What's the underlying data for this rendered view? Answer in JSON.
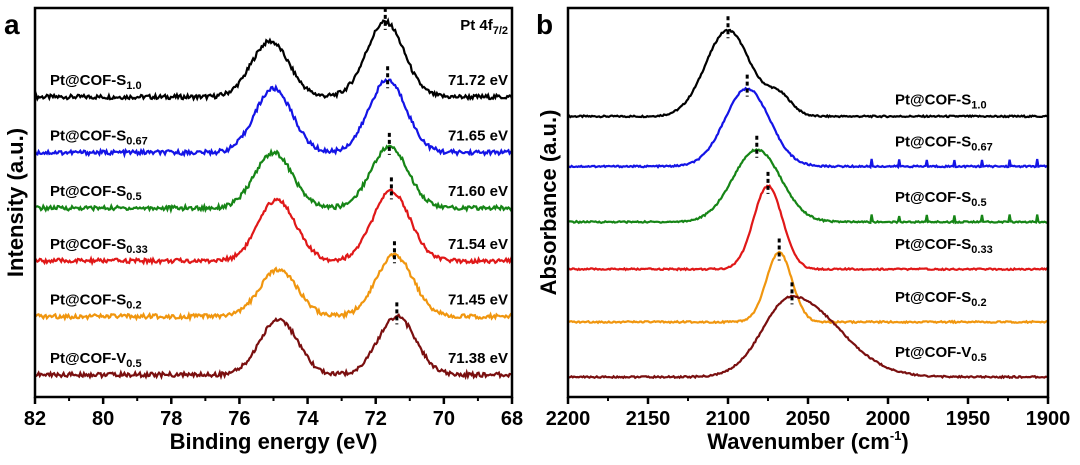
{
  "chart_data": [
    {
      "type": "line",
      "panel": "a",
      "xlabel": "Binding energy (eV)",
      "ylabel": "Intensity (a.u.)",
      "xlim": [
        82,
        68
      ],
      "ylim": [
        0,
        7
      ],
      "xticks": [
        "82",
        "80",
        "78",
        "76",
        "74",
        "72",
        "70",
        "68"
      ],
      "annotation": "Pt 4f",
      "annotation_sub": "7/2",
      "series": [
        {
          "name": "Pt@COF-S",
          "sub": "1.0",
          "color": "#000000",
          "offset": 5.4,
          "peak_label": "71.72 eV",
          "peak": 71.72,
          "peaks": [
            [
              75.1,
              0.55,
              1.0
            ],
            [
              71.72,
              0.55,
              1.35
            ]
          ]
        },
        {
          "name": "Pt@COF-S",
          "sub": "0.67",
          "color": "#1414e6",
          "offset": 4.4,
          "peak_label": "71.65 eV",
          "peak": 71.65,
          "peaks": [
            [
              75.0,
              0.55,
              1.15
            ],
            [
              71.65,
              0.55,
              1.3
            ]
          ]
        },
        {
          "name": "Pt@COF-S",
          "sub": "0.5",
          "color": "#168516",
          "offset": 3.4,
          "peak_label": "71.60 eV",
          "peak": 71.6,
          "peaks": [
            [
              75.0,
              0.55,
              1.0
            ],
            [
              71.6,
              0.55,
              1.1
            ]
          ]
        },
        {
          "name": "Pt@COF-S",
          "sub": "0.33",
          "color": "#e01818",
          "offset": 2.45,
          "peak_label": "71.54 eV",
          "peak": 71.54,
          "peaks": [
            [
              74.9,
              0.55,
              1.1
            ],
            [
              71.54,
              0.55,
              1.25
            ]
          ]
        },
        {
          "name": "Pt@COF-S",
          "sub": "0.2",
          "color": "#f0960f",
          "offset": 1.45,
          "peak_label": "71.45 eV",
          "peak": 71.45,
          "peaks": [
            [
              74.85,
              0.55,
              0.85
            ],
            [
              71.45,
              0.55,
              1.1
            ]
          ]
        },
        {
          "name": "Pt@COF-V",
          "sub": "0.5",
          "color": "#7a0f0f",
          "offset": 0.4,
          "peak_label": "71.38 eV",
          "peak": 71.38,
          "peaks": [
            [
              74.85,
              0.55,
              1.0
            ],
            [
              71.38,
              0.55,
              1.05
            ]
          ]
        }
      ]
    },
    {
      "type": "line",
      "panel": "b",
      "xlabel": "Wavenumber (cm",
      "xlabel_sup": "-1",
      "xlabel_end": ")",
      "ylabel": "Absorbance (a.u.)",
      "xlim": [
        2200,
        1900
      ],
      "ylim": [
        0,
        7
      ],
      "xticks": [
        "2200",
        "2150",
        "2100",
        "2050",
        "2000",
        "1950",
        "1900"
      ],
      "series": [
        {
          "name": "Pt@COF-S",
          "sub": "1.0",
          "color": "#000000",
          "offset": 5.05,
          "peak": 2100,
          "peaks": [
            [
              2100,
              14,
              1.55
            ],
            [
              2068,
              8,
              0.35
            ]
          ]
        },
        {
          "name": "Pt@COF-S",
          "sub": "0.67",
          "color": "#1414e6",
          "offset": 4.15,
          "peak": 2088,
          "peaks": [
            [
              2088,
              14,
              1.4
            ]
          ]
        },
        {
          "name": "Pt@COF-S",
          "sub": "0.5",
          "color": "#168516",
          "offset": 3.15,
          "peak": 2082,
          "peaks": [
            [
              2082,
              15,
              1.3
            ]
          ]
        },
        {
          "name": "Pt@COF-S",
          "sub": "0.33",
          "color": "#e01818",
          "offset": 2.3,
          "peak": 2075,
          "peaks": [
            [
              2075,
              9,
              1.5
            ]
          ]
        },
        {
          "name": "Pt@COF-S",
          "sub": "0.2",
          "color": "#f0960f",
          "offset": 1.35,
          "peak": 2068,
          "peaks": [
            [
              2068,
              8,
              1.25
            ]
          ]
        },
        {
          "name": "Pt@COF-V",
          "sub": "0.5",
          "color": "#7a0f0f",
          "offset": 0.36,
          "peak": 2060,
          "peaks": [
            [
              2060,
              18,
              1.45
            ]
          ]
        }
      ]
    }
  ],
  "panel_labels": [
    "a",
    "b"
  ]
}
